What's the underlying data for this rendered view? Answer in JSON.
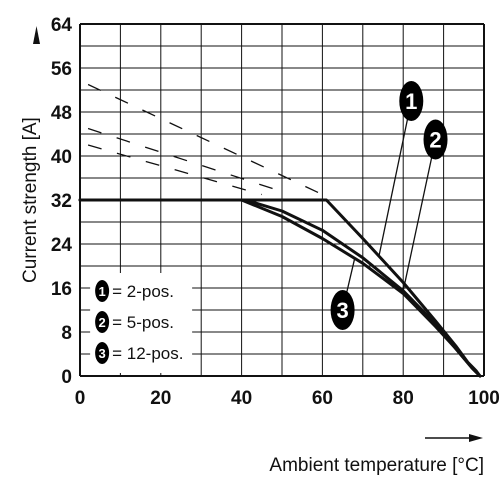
{
  "chart_data": {
    "type": "line",
    "title": "",
    "xlabel": "Ambient temperature [°C]",
    "ylabel": "Current strength [A]",
    "xlim": [
      0,
      100
    ],
    "ylim": [
      0,
      64
    ],
    "x_ticks": [
      "0",
      "20",
      "40",
      "60",
      "80",
      "100"
    ],
    "y_ticks": [
      "0",
      "8",
      "16",
      "24",
      "32",
      "40",
      "48",
      "56",
      "64"
    ],
    "grid": true,
    "series": [
      {
        "name": "= 2-pos.",
        "badge": "1",
        "x": [
          0,
          20,
          40,
          61,
          70,
          80,
          88,
          93,
          96,
          98,
          99
        ],
        "y": [
          32,
          32,
          32,
          32,
          25,
          17,
          10,
          5.5,
          2.5,
          1,
          0
        ]
      },
      {
        "name": "= 5-pos.",
        "badge": "2",
        "x": [
          0,
          20,
          41,
          50,
          60,
          70,
          80,
          88,
          93,
          97,
          99
        ],
        "y": [
          32,
          32,
          32,
          30,
          26.5,
          21.5,
          15.5,
          9.5,
          5,
          1.5,
          0
        ]
      },
      {
        "name": "= 12-pos.",
        "badge": "3",
        "x": [
          0,
          20,
          40,
          50,
          60,
          70,
          80,
          88,
          93,
          97,
          99
        ],
        "y": [
          32,
          32,
          32,
          29,
          25,
          20.5,
          15,
          9,
          5,
          1.5,
          0
        ]
      }
    ],
    "dashed_extrapolations": [
      {
        "x": [
          2,
          60
        ],
        "y": [
          53,
          33
        ]
      },
      {
        "x": [
          2,
          48
        ],
        "y": [
          45,
          34
        ]
      },
      {
        "x": [
          2,
          45
        ],
        "y": [
          42,
          33
        ]
      }
    ],
    "legend": {
      "position": "bottom-left",
      "entries": [
        {
          "badge": "1",
          "label": "= 2-pos."
        },
        {
          "badge": "2",
          "label": "= 5-pos."
        },
        {
          "badge": "3",
          "label": "= 12-pos."
        }
      ]
    },
    "colors": {
      "line": "#111111",
      "grid": "#111111",
      "badge": "#000000",
      "badge_text": "#ffffff"
    }
  }
}
